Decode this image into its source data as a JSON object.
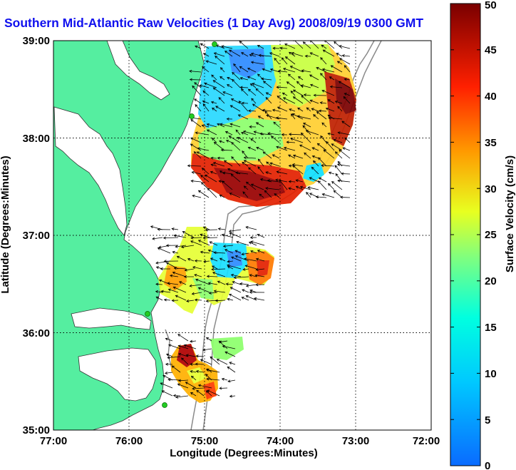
{
  "title": "Southern Mid-Atlantic Raw Velocities (1 Day Avg) 2008/09/19 0300 GMT",
  "axes": {
    "xlabel": "Longitude (Degrees:Minutes)",
    "ylabel": "Latitude (Degrees:Minutes)",
    "x_ticks": [
      "77:00",
      "76:00",
      "75:00",
      "74:00",
      "73:00",
      "72:00"
    ],
    "y_ticks": [
      "39:00",
      "38:00",
      "37:00",
      "36:00",
      "35:00"
    ],
    "xlim": [
      -77,
      -72
    ],
    "ylim": [
      35,
      39
    ]
  },
  "colorbar": {
    "label": "Surface Velocity (cm/s)",
    "ticks": [
      "0",
      "5",
      "10",
      "15",
      "20",
      "25",
      "30",
      "35",
      "40",
      "45",
      "50"
    ],
    "range": [
      0,
      50
    ],
    "colormap": "jet"
  },
  "colors": {
    "land": "#55eea0",
    "water": "#ffffff",
    "title": "#1010ee",
    "grid": "#000000",
    "bathymetry": "#888888",
    "stations": "#22cc22"
  },
  "regions": [
    {
      "name": "northern-field",
      "lon": [
        -75.05,
        -73.05
      ],
      "lat": [
        37.5,
        38.95
      ],
      "speed_range": [
        5,
        50
      ]
    },
    {
      "name": "central-field",
      "lon": [
        -75.55,
        -74.2
      ],
      "lat": [
        36.3,
        37.1
      ],
      "speed_range": [
        5,
        45
      ]
    },
    {
      "name": "southern-field",
      "lon": [
        -75.5,
        -74.6
      ],
      "lat": [
        35.3,
        35.95
      ],
      "speed_range": [
        10,
        50
      ]
    }
  ],
  "stations": [
    {
      "lon": -74.87,
      "lat": 38.96
    },
    {
      "lon": -75.07,
      "lat": 38.22
    },
    {
      "lon": -75.64,
      "lat": 36.19
    },
    {
      "lon": -75.47,
      "lat": 35.25
    }
  ]
}
